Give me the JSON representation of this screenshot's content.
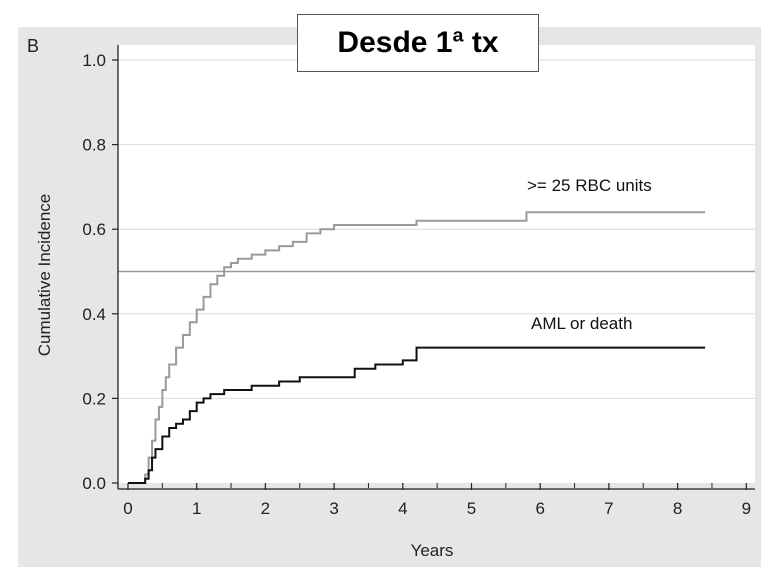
{
  "panel_label": "B",
  "title": "Desde 1ª tx",
  "colors": {
    "frame": "#e6e6e6",
    "plot_bg": "#ffffff",
    "gridline": "#dcdcdc",
    "reference_line": "#9a9a9a",
    "rbc_series": "#9a9a9a",
    "aml_series": "#111111",
    "axis": "#222222"
  },
  "chart_data": {
    "type": "line",
    "step": true,
    "xlabel": "Years",
    "ylabel": "Cumulative Incidence",
    "xlim": [
      0,
      9
    ],
    "ylim": [
      0,
      1.0
    ],
    "xticks": [
      "0",
      "1",
      "2",
      "3",
      "4",
      "5",
      "6",
      "7",
      "8",
      "9"
    ],
    "yticks": [
      "0.0",
      "0.2",
      "0.4",
      "0.6",
      "0.8",
      "1.0"
    ],
    "grid": "horizontal",
    "reference_line_y": 0.5,
    "series": [
      {
        "name": ">= 25 RBC units",
        "color_key": "rbc_series",
        "x": [
          0,
          0.25,
          0.3,
          0.35,
          0.4,
          0.45,
          0.5,
          0.55,
          0.6,
          0.7,
          0.8,
          0.9,
          1.0,
          1.1,
          1.2,
          1.3,
          1.4,
          1.5,
          1.6,
          1.8,
          2.0,
          2.2,
          2.4,
          2.6,
          2.8,
          3.0,
          4.2,
          5.8,
          8.4
        ],
        "y": [
          0,
          0.02,
          0.06,
          0.1,
          0.15,
          0.18,
          0.22,
          0.25,
          0.28,
          0.32,
          0.35,
          0.38,
          0.41,
          0.44,
          0.47,
          0.49,
          0.51,
          0.52,
          0.53,
          0.54,
          0.55,
          0.56,
          0.57,
          0.59,
          0.6,
          0.61,
          0.62,
          0.64,
          0.64
        ]
      },
      {
        "name": "AML or death",
        "color_key": "aml_series",
        "x": [
          0,
          0.25,
          0.3,
          0.35,
          0.4,
          0.5,
          0.6,
          0.7,
          0.8,
          0.9,
          1.0,
          1.1,
          1.2,
          1.4,
          1.6,
          1.8,
          2.0,
          2.2,
          2.5,
          3.0,
          3.3,
          3.6,
          4.0,
          4.2,
          8.4
        ],
        "y": [
          0,
          0.01,
          0.03,
          0.06,
          0.08,
          0.11,
          0.13,
          0.14,
          0.15,
          0.17,
          0.19,
          0.2,
          0.21,
          0.22,
          0.22,
          0.23,
          0.23,
          0.24,
          0.25,
          0.25,
          0.27,
          0.28,
          0.29,
          0.32,
          0.32
        ]
      }
    ]
  }
}
